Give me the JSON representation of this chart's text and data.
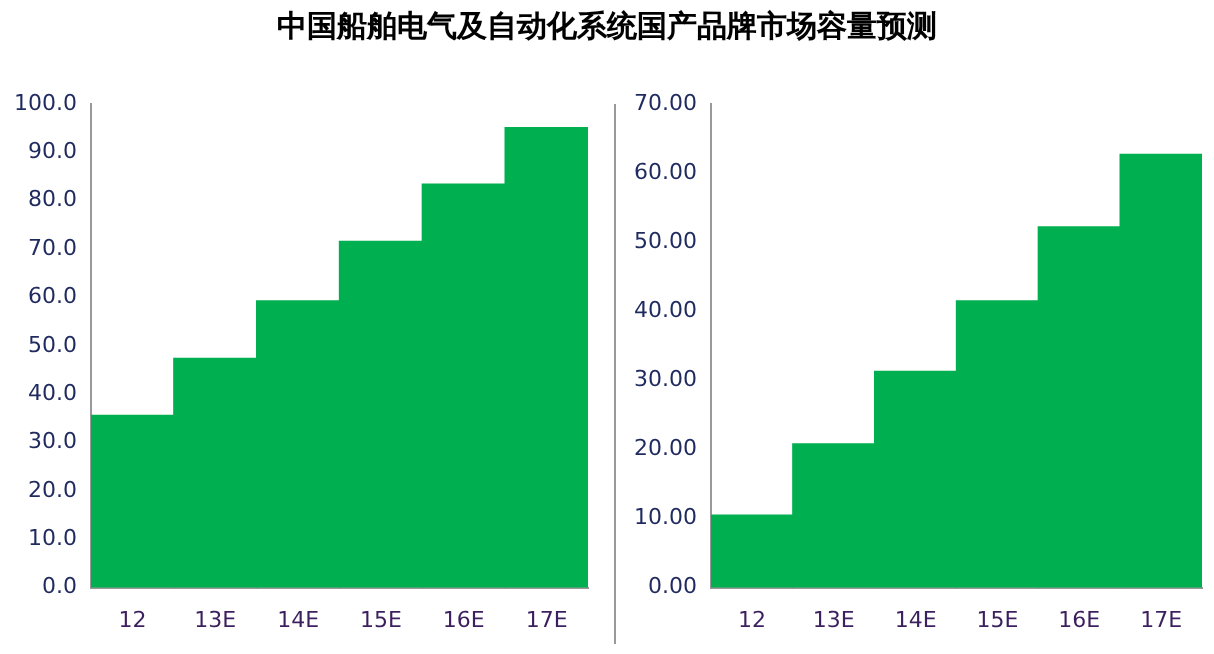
{
  "chart_data": [
    {
      "type": "bar",
      "title": "中国船舶电气及自动化系统国产品牌市场容量预测",
      "categories": [
        "12",
        "13E",
        "14E",
        "15E",
        "16E",
        "17E"
      ],
      "values": [
        35.6,
        47.4,
        59.3,
        71.6,
        83.4,
        95.1
      ],
      "color": "#00b050",
      "ylim": [
        0,
        100
      ],
      "yticks": [
        {
          "value": 0,
          "label": "0.0"
        },
        {
          "value": 10,
          "label": "10.0"
        },
        {
          "value": 20,
          "label": "20.0"
        },
        {
          "value": 30,
          "label": "30.0"
        },
        {
          "value": 40,
          "label": "40.0"
        },
        {
          "value": 50,
          "label": "50.0"
        },
        {
          "value": 60,
          "label": "60.0"
        },
        {
          "value": 70,
          "label": "70.0"
        },
        {
          "value": 80,
          "label": "80.0"
        },
        {
          "value": 90,
          "label": "90.0"
        },
        {
          "value": 100,
          "label": "100.0"
        }
      ],
      "grid": false,
      "legend": false
    },
    {
      "type": "bar",
      "categories": [
        "12",
        "13E",
        "14E",
        "15E",
        "16E",
        "17E"
      ],
      "values": [
        10.5,
        20.8,
        31.3,
        41.5,
        52.2,
        62.7
      ],
      "color": "#00b050",
      "ylim": [
        0,
        70
      ],
      "yticks": [
        {
          "value": 0,
          "label": "0.00"
        },
        {
          "value": 10,
          "label": "10.00"
        },
        {
          "value": 20,
          "label": "20.00"
        },
        {
          "value": 30,
          "label": "30.00"
        },
        {
          "value": 40,
          "label": "40.00"
        },
        {
          "value": 50,
          "label": "50.00"
        },
        {
          "value": 60,
          "label": "60.00"
        },
        {
          "value": 70,
          "label": "70.00"
        }
      ],
      "grid": false,
      "legend": false
    }
  ]
}
